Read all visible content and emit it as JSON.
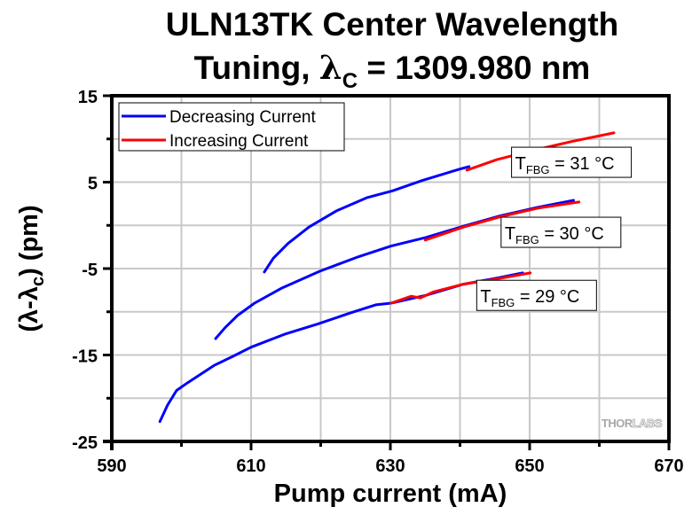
{
  "chart_data": {
    "type": "line",
    "title_line1": "ULN13TK Center Wavelength",
    "title_line2_prefix": "Tuning, ",
    "title_lambda": "λ",
    "title_lambda_sub": "C",
    "title_line2_suffix": " = 1309.980 nm",
    "xlabel": "Pump current (mA)",
    "ylabel_prefix": "(λ-λ",
    "ylabel_sub": "c",
    "ylabel_suffix": ") (pm)",
    "xlim": [
      590,
      670
    ],
    "ylim": [
      -25,
      15
    ],
    "x_ticks": [
      590,
      610,
      630,
      650,
      670
    ],
    "x_tick_labels": [
      "590",
      "610",
      "630",
      "650",
      "670"
    ],
    "x_minor_ticks": [
      600,
      620,
      640,
      660
    ],
    "y_ticks": [
      15,
      5,
      -5,
      -15,
      -25
    ],
    "y_tick_labels": [
      "15",
      "5",
      "-5",
      "-15",
      "-25"
    ],
    "y_minor_ticks": [
      10,
      0,
      -10,
      -20
    ],
    "grid": true,
    "legend": {
      "placement": "top-left",
      "entries": [
        {
          "label": "Decreasing Current",
          "color": "#0000ff"
        },
        {
          "label": "Increasing Current",
          "color": "#ff0000"
        }
      ]
    },
    "series": [
      {
        "name": "Decreasing Current",
        "group": "T_FBG = 29 °C",
        "color": "#0000ff",
        "x": [
          596.9,
          598.0,
          599.3,
          600.9,
          604.7,
          607.3,
          610.0,
          614.8,
          619.6,
          624.4,
          627.9,
          630.1,
          635.1,
          640.5,
          645.3,
          649.0
        ],
        "y": [
          -22.7,
          -20.8,
          -19.1,
          -18.2,
          -16.2,
          -15.2,
          -14.1,
          -12.6,
          -11.4,
          -10.1,
          -9.2,
          -9.0,
          -8.1,
          -6.8,
          -6.1,
          -5.5
        ]
      },
      {
        "name": "Increasing Current",
        "group": "T_FBG = 29 °C",
        "color": "#ff0000",
        "x": [
          630.1,
          633.0,
          634.3,
          636.2,
          640.5,
          645.3,
          650.1
        ],
        "y": [
          -9.0,
          -8.2,
          -8.4,
          -7.7,
          -6.8,
          -6.2,
          -5.5
        ]
      },
      {
        "name": "Decreasing Current",
        "group": "T_FBG = 30 °C",
        "color": "#0000ff",
        "x": [
          604.9,
          606.3,
          608.1,
          610.5,
          614.3,
          619.9,
          625.5,
          630.1,
          635.1,
          640.5,
          645.8,
          651.2,
          656.3
        ],
        "y": [
          -13.1,
          -11.8,
          -10.4,
          -9.0,
          -7.3,
          -5.3,
          -3.6,
          -2.4,
          -1.4,
          -0.1,
          1.1,
          2.1,
          2.9
        ]
      },
      {
        "name": "Increasing Current",
        "group": "T_FBG = 30 °C",
        "color": "#ff0000",
        "x": [
          635.0,
          640.5,
          645.8,
          651.2,
          657.1
        ],
        "y": [
          -1.7,
          -0.2,
          1.0,
          2.0,
          2.7
        ]
      },
      {
        "name": "Decreasing Current",
        "group": "T_FBG = 31 °C",
        "color": "#0000ff",
        "x": [
          611.9,
          613.2,
          615.3,
          618.3,
          622.3,
          626.6,
          630.3,
          634.6,
          639.9,
          641.3
        ],
        "y": [
          -5.4,
          -3.8,
          -2.1,
          -0.2,
          1.7,
          3.2,
          4.0,
          5.2,
          6.5,
          6.8
        ]
      },
      {
        "name": "Increasing Current",
        "group": "T_FBG = 31 °C",
        "color": "#ff0000",
        "x": [
          641.0,
          645.3,
          650.1,
          656.0,
          662.1
        ],
        "y": [
          6.4,
          7.6,
          8.6,
          9.7,
          10.7
        ]
      }
    ],
    "annotations": [
      {
        "prefix": "T",
        "sub": "FBG",
        "suffix": " = 31 °C",
        "x": 656,
        "y": 7.3
      },
      {
        "prefix": "T",
        "sub": "FBG",
        "suffix": " = 30 °C",
        "x": 654.5,
        "y": -0.8
      },
      {
        "prefix": "T",
        "sub": "FBG",
        "suffix": " = 29 °C",
        "x": 651,
        "y": -8.1
      }
    ],
    "watermark": {
      "left": "THOR",
      "right": "LABS"
    }
  }
}
